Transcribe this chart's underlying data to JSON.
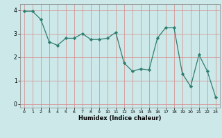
{
  "x": [
    0,
    1,
    2,
    3,
    4,
    5,
    6,
    7,
    8,
    9,
    10,
    11,
    12,
    13,
    14,
    15,
    16,
    17,
    18,
    19,
    20,
    21,
    22,
    23
  ],
  "y": [
    3.95,
    3.95,
    3.6,
    2.65,
    2.5,
    2.8,
    2.8,
    3.0,
    2.75,
    2.75,
    2.8,
    3.05,
    1.75,
    1.4,
    1.5,
    1.45,
    2.8,
    3.25,
    3.25,
    1.3,
    0.75,
    2.1,
    1.4,
    0.3
  ],
  "xlabel": "Humidex (Indice chaleur)",
  "line_color": "#2e7d6e",
  "marker_color": "#2e7d6e",
  "bg_color": "#cce8e8",
  "grid_color": "#b0d8d8",
  "xlim": [
    -0.5,
    23.5
  ],
  "ylim": [
    -0.15,
    4.25
  ],
  "yticks": [
    0,
    1,
    2,
    3,
    4
  ],
  "xticks": [
    0,
    1,
    2,
    3,
    4,
    5,
    6,
    7,
    8,
    9,
    10,
    11,
    12,
    13,
    14,
    15,
    16,
    17,
    18,
    19,
    20,
    21,
    22,
    23
  ]
}
